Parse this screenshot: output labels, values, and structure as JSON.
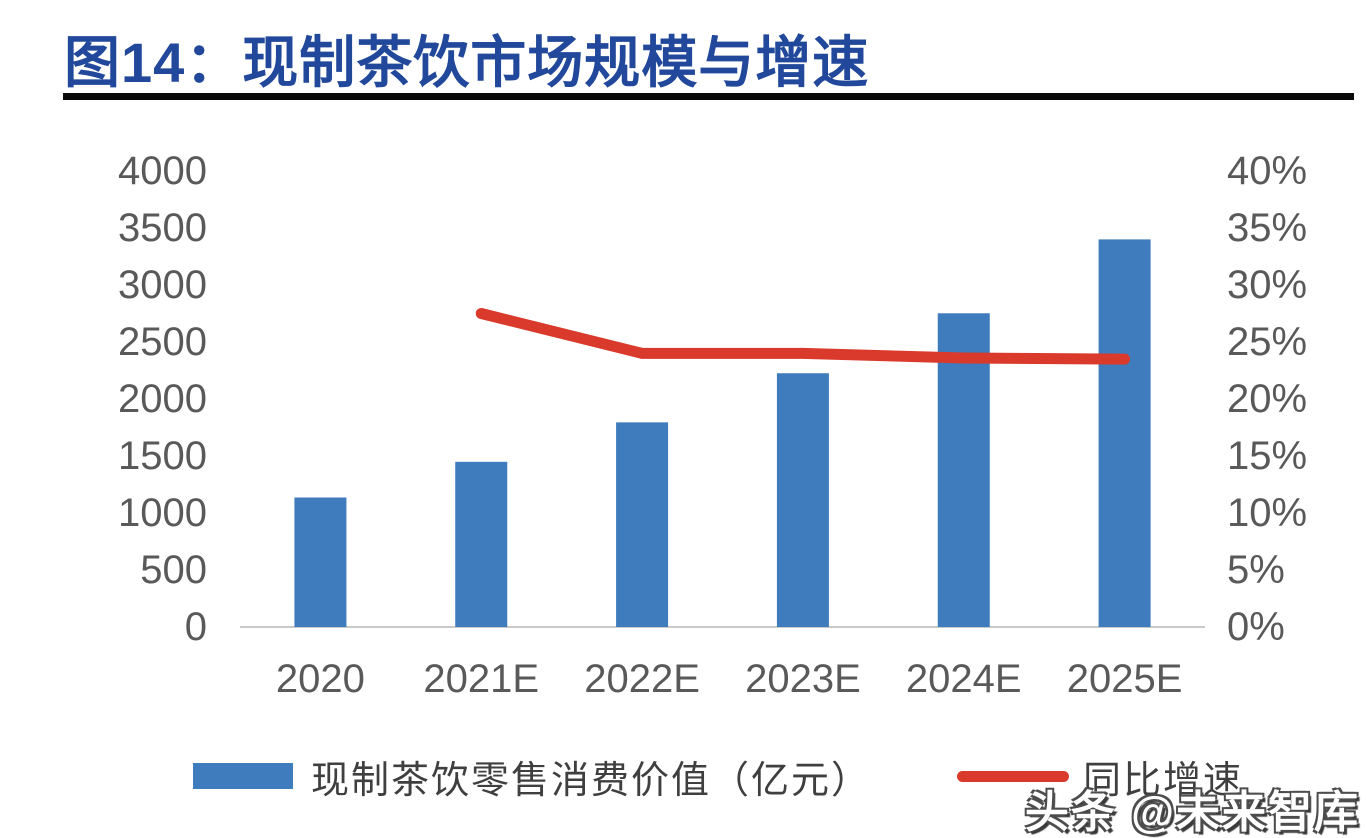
{
  "header": {
    "title": "图14：现制茶饮市场规模与增速"
  },
  "colors": {
    "title_text": "#21489B",
    "title_underline": "#0A0A0A",
    "bar": "#3E7CBE",
    "line": "#D93A2B",
    "axis_text": "#595959",
    "legend_text": "#3F3F3F",
    "baseline": "#C9C9C9",
    "background": "#FFFFFF"
  },
  "chart_data": {
    "type": "combo-bar-line",
    "title": "图14：现制茶饮市场规模与增速",
    "categories": [
      "2020",
      "2021E",
      "2022E",
      "2023E",
      "2024E",
      "2025E"
    ],
    "series": [
      {
        "name": "现制茶饮零售消费价值（亿元）",
        "type": "bar",
        "axis": "left",
        "color": "#3E7CBE",
        "values": [
          1136,
          1449,
          1795,
          2226,
          2752,
          3400
        ]
      },
      {
        "name": "同比增速",
        "type": "line",
        "axis": "right",
        "color": "#D93A2B",
        "values": [
          null,
          27.5,
          24.0,
          24.0,
          23.6,
          23.5
        ]
      }
    ],
    "left_axis": {
      "min": 0,
      "max": 4000,
      "step": 500,
      "tick_labels": [
        "0",
        "500",
        "1000",
        "1500",
        "2000",
        "2500",
        "3000",
        "3500",
        "4000"
      ]
    },
    "right_axis": {
      "min": 0,
      "max": 40,
      "step": 5,
      "unit": "%",
      "tick_labels": [
        "0%",
        "5%",
        "10%",
        "15%",
        "20%",
        "25%",
        "30%",
        "35%",
        "40%"
      ]
    },
    "grid": false,
    "legend_position": "bottom"
  },
  "watermark": {
    "text": "头条 @未来智库"
  }
}
